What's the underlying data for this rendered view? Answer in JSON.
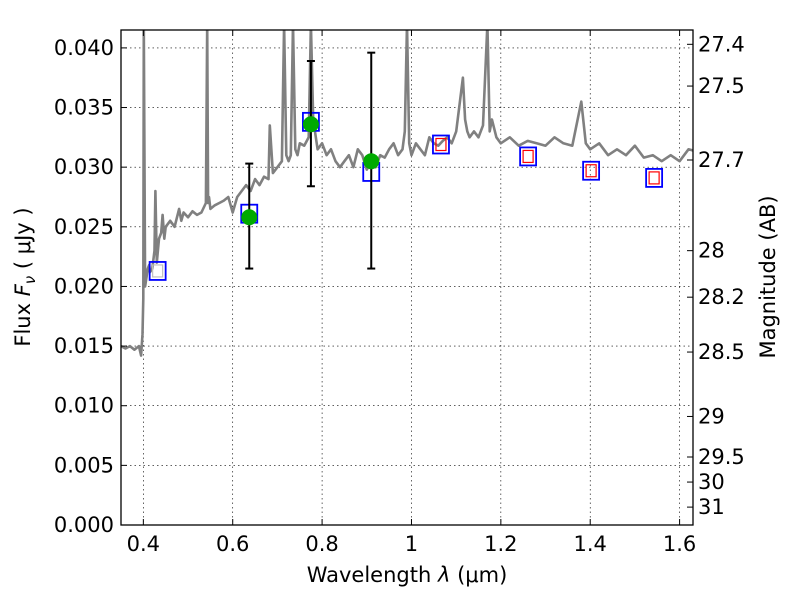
{
  "chart_data": {
    "type": "line",
    "xlabel_prefix": "Wavelength ",
    "xlabel_symbol": "λ",
    "xlabel_unit": " (μm)",
    "ylabel_prefix": "Flux ",
    "ylabel_symbol": "F",
    "ylabel_subscript": "ν",
    "ylabel_unit": " ( μJy )",
    "y2label": "Magnitude (AB)",
    "xlim": [
      0.35,
      1.63
    ],
    "ylim": [
      0.0,
      0.0415
    ],
    "grid": true,
    "x_ticks": [
      {
        "value": 0.4,
        "label": "0.4"
      },
      {
        "value": 0.6,
        "label": "0.6"
      },
      {
        "value": 0.8,
        "label": "0.8"
      },
      {
        "value": 1.0,
        "label": "1"
      },
      {
        "value": 1.2,
        "label": "1.2"
      },
      {
        "value": 1.4,
        "label": "1.4"
      },
      {
        "value": 1.6,
        "label": "1.6"
      }
    ],
    "y_ticks": [
      {
        "value": 0.0,
        "label": "0.000"
      },
      {
        "value": 0.005,
        "label": "0.005"
      },
      {
        "value": 0.01,
        "label": "0.010"
      },
      {
        "value": 0.015,
        "label": "0.015"
      },
      {
        "value": 0.02,
        "label": "0.020"
      },
      {
        "value": 0.025,
        "label": "0.025"
      },
      {
        "value": 0.03,
        "label": "0.030"
      },
      {
        "value": 0.035,
        "label": "0.035"
      },
      {
        "value": 0.04,
        "label": "0.040"
      }
    ],
    "mag_ticks": [
      {
        "flux": 0.0403,
        "label": "27.4"
      },
      {
        "flux": 0.0368,
        "label": "27.5"
      },
      {
        "flux": 0.0306,
        "label": "27.7"
      },
      {
        "flux": 0.023,
        "label": "28"
      },
      {
        "flux": 0.0191,
        "label": "28.2"
      },
      {
        "flux": 0.0145,
        "label": "28.5"
      },
      {
        "flux": 0.0091,
        "label": "29"
      },
      {
        "flux": 0.0057,
        "label": "29.5"
      },
      {
        "flux": 0.0036,
        "label": "30"
      },
      {
        "flux": 0.0015,
        "label": "31"
      }
    ],
    "sed_model": {
      "color": "#808080",
      "x": [
        0.35,
        0.36,
        0.37,
        0.38,
        0.39,
        0.395,
        0.398,
        0.4,
        0.401,
        0.404,
        0.406,
        0.41,
        0.413,
        0.415,
        0.42,
        0.425,
        0.427,
        0.43,
        0.435,
        0.44,
        0.443,
        0.447,
        0.45,
        0.46,
        0.47,
        0.48,
        0.485,
        0.49,
        0.5,
        0.51,
        0.52,
        0.53,
        0.54,
        0.543,
        0.545,
        0.547,
        0.55,
        0.56,
        0.57,
        0.58,
        0.59,
        0.6,
        0.61,
        0.62,
        0.63,
        0.64,
        0.65,
        0.66,
        0.67,
        0.68,
        0.683,
        0.69,
        0.7,
        0.71,
        0.715,
        0.72,
        0.725,
        0.73,
        0.735,
        0.74,
        0.745,
        0.75,
        0.76,
        0.77,
        0.775,
        0.78,
        0.79,
        0.8,
        0.81,
        0.82,
        0.83,
        0.84,
        0.85,
        0.86,
        0.87,
        0.88,
        0.89,
        0.9,
        0.91,
        0.92,
        0.93,
        0.94,
        0.95,
        0.96,
        0.97,
        0.98,
        0.985,
        0.99,
        0.995,
        1.0,
        1.01,
        1.02,
        1.03,
        1.04,
        1.05,
        1.06,
        1.07,
        1.08,
        1.09,
        1.1,
        1.115,
        1.12,
        1.125,
        1.13,
        1.14,
        1.15,
        1.16,
        1.17,
        1.175,
        1.18,
        1.19,
        1.2,
        1.22,
        1.24,
        1.26,
        1.28,
        1.3,
        1.32,
        1.34,
        1.36,
        1.38,
        1.39,
        1.4,
        1.42,
        1.44,
        1.46,
        1.48,
        1.5,
        1.52,
        1.54,
        1.56,
        1.58,
        1.6,
        1.62,
        1.63
      ],
      "y": [
        0.015,
        0.0148,
        0.015,
        0.0147,
        0.015,
        0.0142,
        0.016,
        0.019,
        0.042,
        0.02,
        0.0205,
        0.0215,
        0.0218,
        0.0212,
        0.0215,
        0.023,
        0.028,
        0.022,
        0.024,
        0.0245,
        0.026,
        0.024,
        0.025,
        0.0255,
        0.025,
        0.0265,
        0.0255,
        0.0262,
        0.0258,
        0.0263,
        0.026,
        0.0262,
        0.027,
        0.042,
        0.027,
        0.0275,
        0.0265,
        0.0268,
        0.027,
        0.0272,
        0.0275,
        0.0262,
        0.0275,
        0.028,
        0.0285,
        0.028,
        0.029,
        0.0285,
        0.0292,
        0.029,
        0.0335,
        0.0295,
        0.03,
        0.0305,
        0.042,
        0.031,
        0.0305,
        0.031,
        0.042,
        0.0315,
        0.031,
        0.032,
        0.0318,
        0.0325,
        0.042,
        0.034,
        0.0315,
        0.032,
        0.031,
        0.0315,
        0.0305,
        0.03,
        0.0305,
        0.031,
        0.03,
        0.0315,
        0.031,
        0.0298,
        0.0305,
        0.03,
        0.031,
        0.0308,
        0.0315,
        0.032,
        0.031,
        0.0315,
        0.033,
        0.042,
        0.032,
        0.031,
        0.032,
        0.0315,
        0.031,
        0.0325,
        0.032,
        0.0318,
        0.0322,
        0.0325,
        0.032,
        0.033,
        0.0375,
        0.034,
        0.033,
        0.0325,
        0.033,
        0.0325,
        0.0335,
        0.042,
        0.033,
        0.034,
        0.0325,
        0.032,
        0.0325,
        0.0318,
        0.0322,
        0.032,
        0.0318,
        0.0325,
        0.032,
        0.0318,
        0.0355,
        0.032,
        0.0315,
        0.032,
        0.031,
        0.0315,
        0.031,
        0.0318,
        0.0308,
        0.031,
        0.0305,
        0.031,
        0.0305,
        0.0315,
        0.0314
      ]
    },
    "filter_boxes": [
      {
        "x": 0.432,
        "y": 0.0213,
        "edge": "#0000ff",
        "inner": "#c0c0c0"
      },
      {
        "x": 0.637,
        "y": 0.0261,
        "edge": "#0000ff",
        "inner": null
      },
      {
        "x": 0.775,
        "y": 0.0338,
        "edge": "#0000ff",
        "inner": null
      },
      {
        "x": 0.91,
        "y": 0.0296,
        "edge": "#0000ff",
        "inner": null
      },
      {
        "x": 1.066,
        "y": 0.0319,
        "edge": "#0000ff",
        "inner": "#ff0000"
      },
      {
        "x": 1.261,
        "y": 0.0309,
        "edge": "#0000ff",
        "inner": "#ff0000"
      },
      {
        "x": 1.402,
        "y": 0.0297,
        "edge": "#0000ff",
        "inner": "#ff0000"
      },
      {
        "x": 1.543,
        "y": 0.0291,
        "edge": "#0000ff",
        "inner": "#ff0000"
      }
    ],
    "observed": [
      {
        "x": 0.637,
        "y": 0.0258,
        "yerr_low": 0.0215,
        "yerr_high": 0.0303,
        "color": "#00aa00"
      },
      {
        "x": 0.775,
        "y": 0.0336,
        "yerr_low": 0.0284,
        "yerr_high": 0.0389,
        "color": "#00aa00"
      },
      {
        "x": 0.91,
        "y": 0.0305,
        "yerr_low": 0.0215,
        "yerr_high": 0.0396,
        "color": "#00aa00"
      }
    ]
  }
}
